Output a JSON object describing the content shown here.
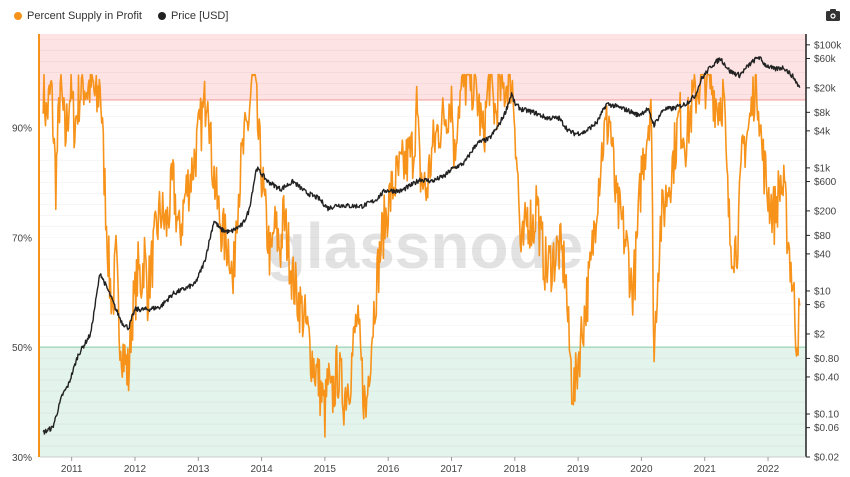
{
  "legend": {
    "series1_label": "Percent Supply in Profit",
    "series2_label": "Price [USD]"
  },
  "watermark": "glassnode",
  "colors": {
    "supply": "#f7931a",
    "price": "#222222",
    "upper_zone": "#fde3e3",
    "upper_line": "#f3a3a3",
    "lower_zone": "#e3f4ec",
    "lower_line": "#9fd8b8",
    "background": "#ffffff"
  },
  "icons": {
    "camera": "camera-icon"
  },
  "chart_data": {
    "type": "line",
    "x_ticks": [
      "2011",
      "2012",
      "2013",
      "2014",
      "2015",
      "2016",
      "2017",
      "2018",
      "2019",
      "2020",
      "2021",
      "2022"
    ],
    "y_left_ticks": [
      "30%",
      "50%",
      "70%",
      "90%"
    ],
    "y_left_range": [
      30,
      107
    ],
    "y_right_ticks": [
      "$100k",
      "$60k",
      "$20k",
      "$8k",
      "$4k",
      "$1k",
      "$600",
      "$200",
      "$80",
      "$40",
      "$10",
      "$6",
      "$2",
      "$0.80",
      "$0.40",
      "$0.10",
      "$0.06",
      "$0.02"
    ],
    "y_right_scale": "log",
    "y_right_range": [
      0.02,
      150000
    ],
    "bands": [
      {
        "from": 95,
        "to": 107,
        "color": "upper"
      },
      {
        "from": 30,
        "to": 50,
        "color": "lower"
      }
    ],
    "series": [
      {
        "name": "Percent Supply in Profit",
        "axis": "left",
        "points": [
          [
            2010.55,
            98
          ],
          [
            2010.6,
            92
          ],
          [
            2010.68,
            97
          ],
          [
            2010.75,
            80
          ],
          [
            2010.82,
            98
          ],
          [
            2010.9,
            88
          ],
          [
            2010.98,
            97
          ],
          [
            2011.05,
            90
          ],
          [
            2011.12,
            96
          ],
          [
            2011.18,
            98
          ],
          [
            2011.25,
            97
          ],
          [
            2011.32,
            98
          ],
          [
            2011.4,
            94
          ],
          [
            2011.45,
            99
          ],
          [
            2011.5,
            85
          ],
          [
            2011.55,
            73
          ],
          [
            2011.6,
            62
          ],
          [
            2011.65,
            58
          ],
          [
            2011.7,
            66
          ],
          [
            2011.75,
            54
          ],
          [
            2011.8,
            50
          ],
          [
            2011.85,
            47
          ],
          [
            2011.9,
            45
          ],
          [
            2011.95,
            56
          ],
          [
            2012.0,
            59
          ],
          [
            2012.05,
            64
          ],
          [
            2012.1,
            62
          ],
          [
            2012.15,
            67
          ],
          [
            2012.2,
            60
          ],
          [
            2012.3,
            68
          ],
          [
            2012.4,
            75
          ],
          [
            2012.5,
            72
          ],
          [
            2012.6,
            80
          ],
          [
            2012.7,
            70
          ],
          [
            2012.8,
            78
          ],
          [
            2012.9,
            82
          ],
          [
            2013.0,
            88
          ],
          [
            2013.1,
            94
          ],
          [
            2013.15,
            99
          ],
          [
            2013.2,
            86
          ],
          [
            2013.3,
            76
          ],
          [
            2013.4,
            70
          ],
          [
            2013.5,
            68
          ],
          [
            2013.55,
            60
          ],
          [
            2013.6,
            75
          ],
          [
            2013.7,
            85
          ],
          [
            2013.8,
            92
          ],
          [
            2013.85,
            99
          ],
          [
            2013.9,
            97
          ],
          [
            2013.95,
            88
          ],
          [
            2014.0,
            82
          ],
          [
            2014.05,
            75
          ],
          [
            2014.1,
            70
          ],
          [
            2014.15,
            65
          ],
          [
            2014.2,
            72
          ],
          [
            2014.3,
            68
          ],
          [
            2014.35,
            74
          ],
          [
            2014.4,
            70
          ],
          [
            2014.5,
            62
          ],
          [
            2014.6,
            58
          ],
          [
            2014.7,
            54
          ],
          [
            2014.8,
            48
          ],
          [
            2014.9,
            44
          ],
          [
            2015.0,
            38
          ],
          [
            2015.05,
            44
          ],
          [
            2015.1,
            40
          ],
          [
            2015.2,
            46
          ],
          [
            2015.3,
            41
          ],
          [
            2015.4,
            45
          ],
          [
            2015.5,
            55
          ],
          [
            2015.55,
            50
          ],
          [
            2015.6,
            43
          ],
          [
            2015.65,
            38
          ],
          [
            2015.7,
            47
          ],
          [
            2015.8,
            60
          ],
          [
            2015.9,
            70
          ],
          [
            2016.0,
            76
          ],
          [
            2016.1,
            80
          ],
          [
            2016.2,
            82
          ],
          [
            2016.3,
            84
          ],
          [
            2016.4,
            86
          ],
          [
            2016.45,
            94
          ],
          [
            2016.5,
            82
          ],
          [
            2016.6,
            78
          ],
          [
            2016.7,
            86
          ],
          [
            2016.8,
            90
          ],
          [
            2016.9,
            92
          ],
          [
            2017.0,
            96
          ],
          [
            2017.05,
            84
          ],
          [
            2017.1,
            94
          ],
          [
            2017.2,
            98
          ],
          [
            2017.3,
            99
          ],
          [
            2017.4,
            96
          ],
          [
            2017.5,
            88
          ],
          [
            2017.6,
            99
          ],
          [
            2017.7,
            92
          ],
          [
            2017.75,
            98
          ],
          [
            2017.8,
            96
          ],
          [
            2017.9,
            99
          ],
          [
            2017.95,
            99
          ],
          [
            2018.0,
            92
          ],
          [
            2018.05,
            80
          ],
          [
            2018.1,
            66
          ],
          [
            2018.2,
            74
          ],
          [
            2018.3,
            72
          ],
          [
            2018.35,
            78
          ],
          [
            2018.4,
            70
          ],
          [
            2018.5,
            64
          ],
          [
            2018.6,
            66
          ],
          [
            2018.7,
            68
          ],
          [
            2018.8,
            64
          ],
          [
            2018.85,
            52
          ],
          [
            2018.9,
            44
          ],
          [
            2018.95,
            42
          ],
          [
            2019.0,
            48
          ],
          [
            2019.05,
            52
          ],
          [
            2019.1,
            56
          ],
          [
            2019.2,
            64
          ],
          [
            2019.3,
            78
          ],
          [
            2019.4,
            88
          ],
          [
            2019.5,
            92
          ],
          [
            2019.55,
            84
          ],
          [
            2019.6,
            76
          ],
          [
            2019.7,
            72
          ],
          [
            2019.8,
            66
          ],
          [
            2019.85,
            60
          ],
          [
            2019.9,
            64
          ],
          [
            2019.95,
            72
          ],
          [
            2020.0,
            82
          ],
          [
            2020.1,
            90
          ],
          [
            2020.15,
            96
          ],
          [
            2020.2,
            48
          ],
          [
            2020.25,
            62
          ],
          [
            2020.3,
            72
          ],
          [
            2020.4,
            78
          ],
          [
            2020.5,
            84
          ],
          [
            2020.6,
            92
          ],
          [
            2020.7,
            88
          ],
          [
            2020.8,
            94
          ],
          [
            2020.9,
            98
          ],
          [
            2021.0,
            99
          ],
          [
            2021.1,
            98
          ],
          [
            2021.2,
            94
          ],
          [
            2021.3,
            96
          ],
          [
            2021.35,
            80
          ],
          [
            2021.4,
            70
          ],
          [
            2021.5,
            68
          ],
          [
            2021.55,
            75
          ],
          [
            2021.6,
            86
          ],
          [
            2021.7,
            90
          ],
          [
            2021.75,
            94
          ],
          [
            2021.8,
            99
          ],
          [
            2021.85,
            96
          ],
          [
            2021.9,
            86
          ],
          [
            2021.95,
            82
          ],
          [
            2022.0,
            78
          ],
          [
            2022.1,
            74
          ],
          [
            2022.2,
            80
          ],
          [
            2022.25,
            78
          ],
          [
            2022.3,
            72
          ],
          [
            2022.35,
            66
          ],
          [
            2022.4,
            60
          ],
          [
            2022.45,
            52
          ],
          [
            2022.5,
            55
          ]
        ]
      },
      {
        "name": "Price [USD]",
        "axis": "right",
        "points": [
          [
            2010.55,
            0.05
          ],
          [
            2010.7,
            0.06
          ],
          [
            2010.85,
            0.2
          ],
          [
            2010.95,
            0.3
          ],
          [
            2011.1,
            0.9
          ],
          [
            2011.3,
            2
          ],
          [
            2011.45,
            20
          ],
          [
            2011.5,
            15
          ],
          [
            2011.6,
            9
          ],
          [
            2011.7,
            5
          ],
          [
            2011.8,
            3
          ],
          [
            2011.9,
            2.5
          ],
          [
            2012.0,
            5
          ],
          [
            2012.2,
            5
          ],
          [
            2012.4,
            5.5
          ],
          [
            2012.6,
            9
          ],
          [
            2012.8,
            11
          ],
          [
            2012.95,
            13
          ],
          [
            2013.1,
            30
          ],
          [
            2013.25,
            140
          ],
          [
            2013.35,
            100
          ],
          [
            2013.5,
            90
          ],
          [
            2013.7,
            120
          ],
          [
            2013.8,
            200
          ],
          [
            2013.92,
            1000
          ],
          [
            2014.0,
            800
          ],
          [
            2014.1,
            600
          ],
          [
            2014.3,
            450
          ],
          [
            2014.5,
            600
          ],
          [
            2014.7,
            400
          ],
          [
            2014.9,
            320
          ],
          [
            2015.05,
            220
          ],
          [
            2015.2,
            250
          ],
          [
            2015.4,
            240
          ],
          [
            2015.6,
            240
          ],
          [
            2015.8,
            300
          ],
          [
            2015.95,
            430
          ],
          [
            2016.2,
            420
          ],
          [
            2016.4,
            550
          ],
          [
            2016.5,
            650
          ],
          [
            2016.7,
            610
          ],
          [
            2016.9,
            750
          ],
          [
            2017.0,
            950
          ],
          [
            2017.2,
            1200
          ],
          [
            2017.4,
            2500
          ],
          [
            2017.6,
            3000
          ],
          [
            2017.75,
            5000
          ],
          [
            2017.85,
            8000
          ],
          [
            2017.95,
            16000
          ],
          [
            2018.0,
            11000
          ],
          [
            2018.1,
            9000
          ],
          [
            2018.3,
            8000
          ],
          [
            2018.5,
            6500
          ],
          [
            2018.7,
            6400
          ],
          [
            2018.85,
            4000
          ],
          [
            2018.95,
            3600
          ],
          [
            2019.1,
            3800
          ],
          [
            2019.3,
            5500
          ],
          [
            2019.45,
            11000
          ],
          [
            2019.6,
            10000
          ],
          [
            2019.8,
            8500
          ],
          [
            2019.95,
            7200
          ],
          [
            2020.1,
            9000
          ],
          [
            2020.2,
            5000
          ],
          [
            2020.35,
            9000
          ],
          [
            2020.5,
            9200
          ],
          [
            2020.7,
            11000
          ],
          [
            2020.85,
            15000
          ],
          [
            2020.95,
            28000
          ],
          [
            2021.1,
            45000
          ],
          [
            2021.25,
            60000
          ],
          [
            2021.4,
            37000
          ],
          [
            2021.55,
            32000
          ],
          [
            2021.7,
            47000
          ],
          [
            2021.85,
            64000
          ],
          [
            2021.95,
            48000
          ],
          [
            2022.1,
            40000
          ],
          [
            2022.25,
            43000
          ],
          [
            2022.4,
            30000
          ],
          [
            2022.5,
            20000
          ]
        ]
      }
    ]
  }
}
